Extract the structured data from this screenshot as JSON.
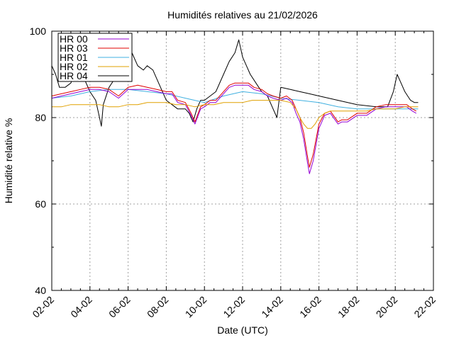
{
  "chart_data": {
    "type": "line",
    "title": "Humidités relatives  au 21/02/2026",
    "xlabel": "Date (UTC)",
    "ylabel": "Humidité relative %",
    "x_ticks": [
      "02-02",
      "04-02",
      "06-02",
      "08-02",
      "10-02",
      "12-02",
      "14-02",
      "16-02",
      "18-02",
      "20-02",
      "22-02"
    ],
    "xlim_days": [
      2,
      22
    ],
    "ylim": [
      40,
      100
    ],
    "y_ticks": [
      40,
      60,
      80,
      100
    ],
    "grid": true,
    "legend_position": "top-left",
    "series": [
      {
        "name": "HR 00",
        "color": "#9400d3",
        "x": [
          2.0,
          2.5,
          3.0,
          3.5,
          4.0,
          4.5,
          5.0,
          5.5,
          6.0,
          6.5,
          7.0,
          7.5,
          8.0,
          8.3,
          8.6,
          9.0,
          9.3,
          9.5,
          9.8,
          10.0,
          10.3,
          10.6,
          11.0,
          11.3,
          11.6,
          12.0,
          12.3,
          12.6,
          13.0,
          13.3,
          13.6,
          14.0,
          14.3,
          14.6,
          14.8,
          15.0,
          15.2,
          15.4,
          15.5,
          15.7,
          16.0,
          16.3,
          16.6,
          17.0,
          17.2,
          17.5,
          18.0,
          18.5,
          19.0,
          19.5,
          20.0,
          20.3,
          20.6,
          20.9,
          21.1
        ],
        "y": [
          84.5,
          85,
          85.5,
          86,
          86.5,
          86.5,
          86,
          84.5,
          86.5,
          86.5,
          86.5,
          86,
          85.5,
          85.5,
          83.5,
          83,
          80.5,
          78.5,
          82,
          82.5,
          83.5,
          83.5,
          85.5,
          87,
          87.5,
          87.5,
          87.5,
          86.5,
          86,
          85,
          84.5,
          84,
          84.5,
          83.5,
          81,
          79,
          75,
          69.5,
          67,
          70,
          77.5,
          80.5,
          81,
          78.5,
          79,
          79,
          80.5,
          80.5,
          82,
          82.5,
          82.5,
          82.5,
          82.5,
          81.5,
          81
        ]
      },
      {
        "name": "HR 03",
        "color": "#e00000",
        "x": [
          2.0,
          2.5,
          3.0,
          3.5,
          4.0,
          4.5,
          5.0,
          5.5,
          6.0,
          6.5,
          7.0,
          7.5,
          8.0,
          8.3,
          8.6,
          9.0,
          9.3,
          9.5,
          9.8,
          10.0,
          10.3,
          10.6,
          11.0,
          11.3,
          11.6,
          12.0,
          12.3,
          12.6,
          13.0,
          13.3,
          13.6,
          14.0,
          14.3,
          14.6,
          14.8,
          15.0,
          15.2,
          15.4,
          15.5,
          15.7,
          16.0,
          16.3,
          16.6,
          17.0,
          17.2,
          17.5,
          18.0,
          18.5,
          19.0,
          19.5,
          20.0,
          20.3,
          20.6,
          20.9,
          21.1
        ],
        "y": [
          85,
          85.5,
          86,
          86.5,
          87,
          87,
          86.5,
          85,
          87,
          87.5,
          87,
          86.5,
          86,
          86,
          84,
          83.5,
          81,
          79,
          82.5,
          83,
          84,
          84,
          86,
          87.5,
          88,
          88,
          88,
          87,
          86.5,
          85.5,
          85,
          84.5,
          85,
          84,
          82,
          80,
          76.5,
          71,
          68.5,
          71.5,
          78.5,
          81,
          81.5,
          79,
          79.5,
          79.5,
          81,
          81,
          82.5,
          83,
          83,
          83,
          83,
          82,
          81.5
        ]
      },
      {
        "name": "HR 01",
        "color": "#40b0e0",
        "x": [
          2.0,
          3.0,
          4.0,
          5.0,
          6.0,
          7.0,
          8.0,
          9.0,
          10.0,
          11.0,
          12.0,
          13.0,
          14.0,
          15.0,
          16.0,
          17.0,
          18.0,
          19.0,
          20.0,
          21.0,
          21.2
        ],
        "y": [
          84.5,
          85,
          86,
          86.5,
          86.5,
          86,
          85.5,
          84.5,
          83.5,
          85,
          86,
          85.5,
          84.5,
          84,
          83.5,
          82.5,
          82,
          82,
          82,
          82,
          82
        ]
      },
      {
        "name": "HR 02",
        "color": "#e0a000",
        "x": [
          2.0,
          2.5,
          3.0,
          3.5,
          4.0,
          4.5,
          5.0,
          5.5,
          6.0,
          6.5,
          7.0,
          7.5,
          8.0,
          8.5,
          9.0,
          9.5,
          10.0,
          10.5,
          11.0,
          11.5,
          12.0,
          12.5,
          13.0,
          13.5,
          14.0,
          14.5,
          14.8,
          15.0,
          15.2,
          15.4,
          15.6,
          15.8,
          16.0,
          16.3,
          16.6,
          17.0,
          17.5,
          18.0,
          18.5,
          19.0,
          19.5,
          20.0,
          20.5,
          21.0,
          21.2
        ],
        "y": [
          82.5,
          82.5,
          83,
          83,
          83,
          83,
          82.5,
          82.5,
          83,
          83,
          83.5,
          83.5,
          83.5,
          83,
          83,
          82.5,
          83,
          83,
          83.5,
          83.5,
          83.5,
          84,
          84,
          84,
          84,
          83.5,
          82,
          80,
          78.5,
          77.5,
          77.5,
          78.5,
          80,
          81,
          81.5,
          81.5,
          81.5,
          81.5,
          81.5,
          82,
          82,
          82,
          82.5,
          82.5,
          82.5
        ]
      },
      {
        "name": "HR 04",
        "color": "#000000",
        "x": [
          2.0,
          2.2,
          2.4,
          2.7,
          3.0,
          3.3,
          3.6,
          4.0,
          4.3,
          4.5,
          4.6,
          4.7,
          5.0,
          5.3,
          5.6,
          5.8,
          6.0,
          6.2,
          6.5,
          6.8,
          7.0,
          7.3,
          7.6,
          8.0,
          8.3,
          8.6,
          9.0,
          9.2,
          9.4,
          9.6,
          9.8,
          10.0,
          10.3,
          10.6,
          11.0,
          11.3,
          11.6,
          11.8,
          12.0,
          12.2,
          12.4,
          12.7,
          13.0,
          13.3,
          13.6,
          13.8,
          14.0,
          14.5,
          15.0,
          15.5,
          16.0,
          17.0,
          18.0,
          19.0,
          19.6,
          19.9,
          20.1,
          20.3,
          20.5,
          20.8,
          21.0,
          21.2
        ],
        "y": [
          92,
          90,
          87,
          87,
          88,
          91,
          90,
          86,
          84,
          80,
          78,
          83,
          87,
          89,
          90,
          94,
          99,
          95,
          92,
          91,
          92,
          91,
          88,
          84,
          83,
          82,
          82,
          81,
          79,
          82,
          84,
          84,
          85,
          86,
          90,
          93,
          95,
          98,
          94,
          92,
          90,
          88,
          86,
          85,
          82,
          80,
          87,
          86.5,
          86,
          85.5,
          85,
          84,
          83,
          82.5,
          82.5,
          86,
          90,
          88,
          86,
          84,
          83.5,
          83.5
        ]
      }
    ]
  }
}
